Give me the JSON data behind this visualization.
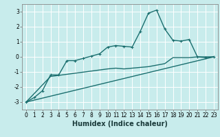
{
  "xlabel": "Humidex (Indice chaleur)",
  "bg_color": "#c8ecec",
  "grid_color": "#ffffff",
  "line_color": "#1a6e6e",
  "xlim": [
    -0.5,
    23.5
  ],
  "ylim": [
    -3.5,
    3.5
  ],
  "xticks": [
    0,
    1,
    2,
    3,
    4,
    5,
    6,
    7,
    8,
    9,
    10,
    11,
    12,
    13,
    14,
    15,
    16,
    17,
    18,
    19,
    20,
    21,
    22,
    23
  ],
  "yticks": [
    -3,
    -2,
    -1,
    0,
    1,
    2,
    3
  ],
  "series1_x": [
    0,
    1,
    2,
    3,
    4,
    5,
    6,
    7,
    8,
    9,
    10,
    11,
    12,
    13,
    14,
    15,
    16,
    17,
    18,
    19,
    20,
    21,
    22,
    23
  ],
  "series1_y": [
    -3.0,
    -2.7,
    -2.25,
    -1.2,
    -1.2,
    -0.25,
    -0.25,
    -0.1,
    0.05,
    0.2,
    0.65,
    0.75,
    0.7,
    0.65,
    1.7,
    2.9,
    3.1,
    1.85,
    1.1,
    1.05,
    1.15,
    0.0,
    -0.05,
    0.0
  ],
  "series2_x": [
    0,
    3,
    10,
    11,
    12,
    13,
    14,
    15,
    16,
    17,
    18,
    19,
    20,
    21,
    22,
    23
  ],
  "series2_y": [
    -3.0,
    -1.3,
    -0.8,
    -0.75,
    -0.8,
    -0.75,
    -0.7,
    -0.65,
    -0.55,
    -0.45,
    -0.05,
    -0.05,
    -0.05,
    0.0,
    0.0,
    0.0
  ],
  "series3_x": [
    0,
    23
  ],
  "series3_y": [
    -3.0,
    0.0
  ],
  "marker_size": 2.5,
  "line_width": 1.0,
  "font_size_xlabel": 7,
  "font_size_ticks": 5.5
}
